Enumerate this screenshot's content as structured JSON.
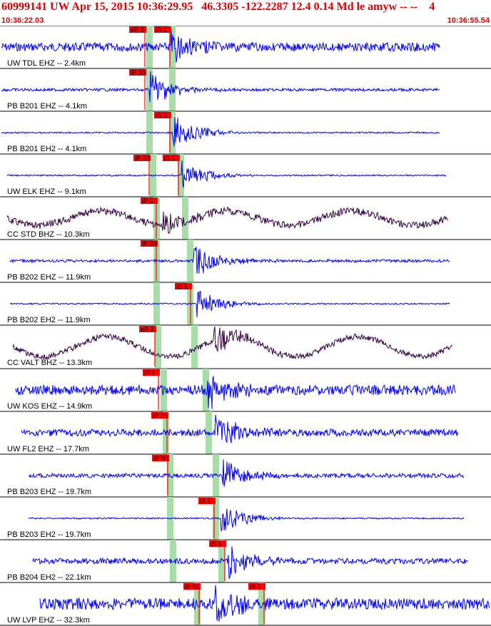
{
  "header": {
    "title": "60999141 UW Apr 15, 2015 10:36:29.95   46.3305 -122.2287 12.4 0.14 Md le amyw -- --    4",
    "start_time": "10:36:22.03",
    "end_time": "10:36:55.54"
  },
  "colors": {
    "blue_trace": "#0000ff",
    "dark_trace": "#330044",
    "pick": "#ff0000",
    "window": "#a8dca8",
    "header_text": "#e00000"
  },
  "traces": [
    {
      "label": "UW TDL EHZ -- 2.4km",
      "color": "blue",
      "picks": [
        "eP 2",
        "iS 1"
      ]
    },
    {
      "label": "PB B201 EHZ -- 4.1km",
      "color": "blue",
      "picks": [
        "iP 30"
      ]
    },
    {
      "label": "PB B201 EH2 -- 4.1km",
      "color": "blue",
      "picks": [
        "iS 0"
      ]
    },
    {
      "label": "UW ELK EHZ -- 9.1km",
      "color": "blue",
      "picks": [
        "iP 30",
        "iS 1"
      ]
    },
    {
      "label": "CC STD BHZ -- 10.3km",
      "color": "dark",
      "picks": [
        "iP 1"
      ]
    },
    {
      "label": "PB B202 EHZ -- 11.9km",
      "color": "blue",
      "picks": [
        "iP 30"
      ]
    },
    {
      "label": "PB B202 EH2 -- 11.9km",
      "color": "blue",
      "picks": [
        "iS 1"
      ]
    },
    {
      "label": "CC VALT BHZ -- 13.3km",
      "color": "dark",
      "picks": [
        "eP 2"
      ]
    },
    {
      "label": "UW KOS EHZ -- 14.9km",
      "color": "blue",
      "picks": [
        "iP 1"
      ]
    },
    {
      "label": "UW FL2 EHZ -- 17.7km",
      "color": "blue",
      "picks": [
        "iP 21"
      ]
    },
    {
      "label": "PB B203 EHZ -- 19.7km",
      "color": "blue",
      "picks": [
        "iP 30"
      ]
    },
    {
      "label": "PB B203 EH2 -- 19.7km",
      "color": "blue",
      "picks": [
        "iS 1"
      ]
    },
    {
      "label": "PB B204 EH2 -- 22.1km",
      "color": "blue",
      "picks": [
        "iS 1"
      ]
    },
    {
      "label": "UW LVP EHZ -- 32.3km",
      "color": "blue",
      "picks": [
        "iP 11",
        "iS 1"
      ]
    }
  ]
}
